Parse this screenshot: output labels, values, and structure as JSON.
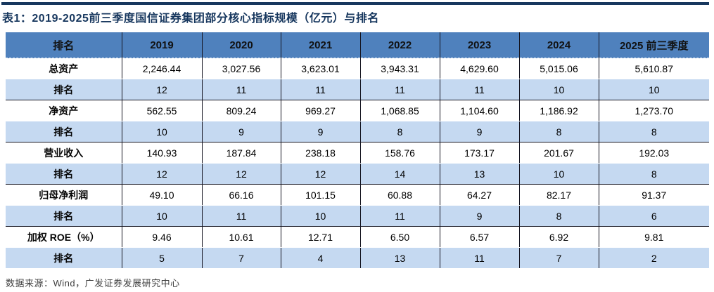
{
  "title": "表1：2019-2025前三季度国信证券集团部分核心指标规模（亿元）与排名",
  "source": "数据来源：Wind，广发证券发展研究中心",
  "colors": {
    "title_navy": "#17375E",
    "header_bg": "#4F81BD",
    "rank_row_bg": "#C5D9F1",
    "grid_line": "#141420",
    "source_text": "#404040"
  },
  "chart_data": {
    "type": "table",
    "title": "表1：2019-2025前三季度国信证券集团部分核心指标规模（亿元）与排名",
    "columns": [
      "排名",
      "2019",
      "2020",
      "2021",
      "2022",
      "2023",
      "2024",
      "2025 前三季度"
    ],
    "rows": [
      {
        "label": "总资产",
        "kind": "value",
        "cells": [
          "2,246.44",
          "3,027.56",
          "3,623.01",
          "3,943.31",
          "4,629.60",
          "5,015.06",
          "5,610.87"
        ]
      },
      {
        "label": "排名",
        "kind": "rank",
        "cells": [
          "12",
          "11",
          "11",
          "11",
          "11",
          "10",
          "10"
        ]
      },
      {
        "label": "净资产",
        "kind": "value",
        "cells": [
          "562.55",
          "809.24",
          "969.27",
          "1,068.85",
          "1,104.60",
          "1,186.92",
          "1,273.70"
        ]
      },
      {
        "label": "排名",
        "kind": "rank",
        "cells": [
          "10",
          "9",
          "9",
          "8",
          "9",
          "8",
          "8"
        ]
      },
      {
        "label": "营业收入",
        "kind": "value",
        "cells": [
          "140.93",
          "187.84",
          "238.18",
          "158.76",
          "173.17",
          "201.67",
          "192.03"
        ]
      },
      {
        "label": "排名",
        "kind": "rank",
        "cells": [
          "12",
          "12",
          "12",
          "14",
          "13",
          "10",
          "8"
        ]
      },
      {
        "label": "归母净利润",
        "kind": "value",
        "cells": [
          "49.10",
          "66.16",
          "101.15",
          "60.88",
          "64.27",
          "82.17",
          "91.37"
        ]
      },
      {
        "label": "排名",
        "kind": "rank",
        "cells": [
          "10",
          "11",
          "10",
          "11",
          "9",
          "8",
          "6"
        ]
      },
      {
        "label": "加权 ROE（%）",
        "kind": "value",
        "cells": [
          "9.46",
          "10.61",
          "12.71",
          "6.50",
          "6.57",
          "6.92",
          "9.81"
        ]
      },
      {
        "label": "排名",
        "kind": "rank",
        "cells": [
          "5",
          "7",
          "4",
          "13",
          "11",
          "7",
          "2"
        ]
      }
    ]
  }
}
